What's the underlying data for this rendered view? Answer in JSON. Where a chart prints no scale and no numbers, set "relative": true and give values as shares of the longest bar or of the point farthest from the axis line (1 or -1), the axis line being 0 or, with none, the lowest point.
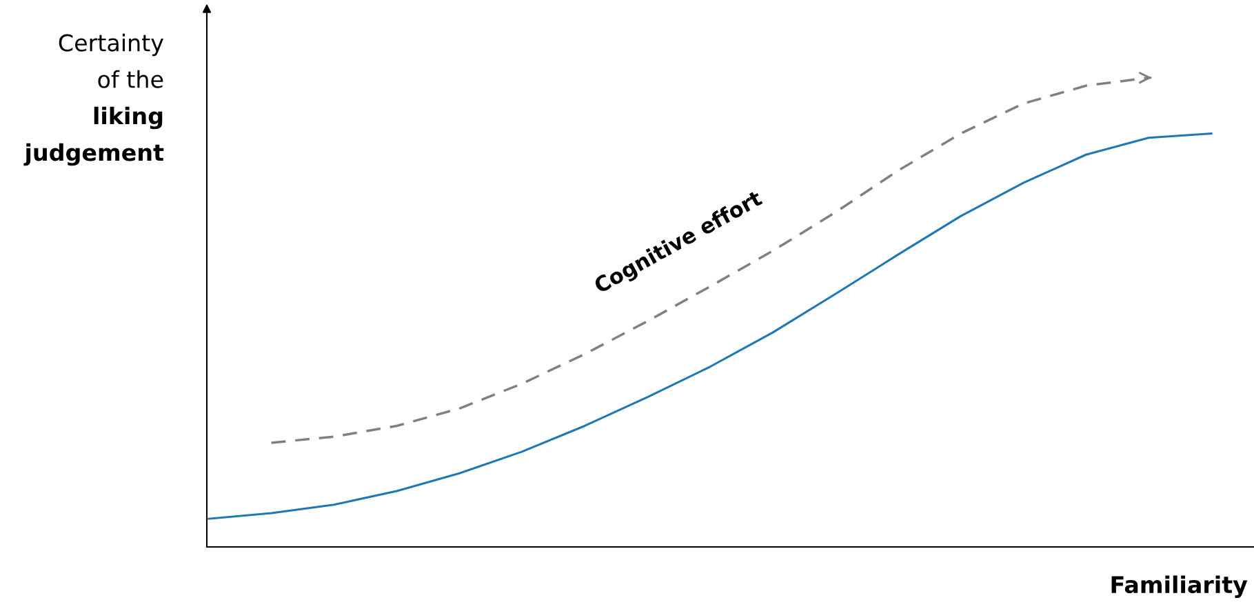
{
  "chart_data": {
    "type": "line",
    "relative": true,
    "xlabel": "Familiarity",
    "ylabel": "Certainty\nof the\nliking\njudgement",
    "legend": false,
    "categories": [
      null,
      null,
      null,
      null,
      null,
      null,
      null,
      null,
      null,
      null,
      null,
      null,
      null,
      null,
      null,
      null,
      null
    ],
    "series": [
      {
        "color": "#1f77b4",
        "line_style": "solid",
        "values": [
          0.06,
          0.072,
          0.09,
          0.119,
          0.157,
          0.203,
          0.258,
          0.319,
          0.384,
          0.457,
          0.539,
          0.623,
          0.705,
          0.776,
          0.836,
          0.872,
          0.881
        ]
      },
      {
        "name": "Cognitive effort",
        "color": "#808080",
        "line_style": "dashed",
        "values": [
          null,
          0.222,
          0.235,
          0.258,
          0.295,
          0.348,
          0.411,
          0.481,
          0.555,
          0.631,
          0.713,
          0.802,
          0.881,
          0.945,
          0.983,
          1.0,
          null
        ]
      }
    ]
  }
}
